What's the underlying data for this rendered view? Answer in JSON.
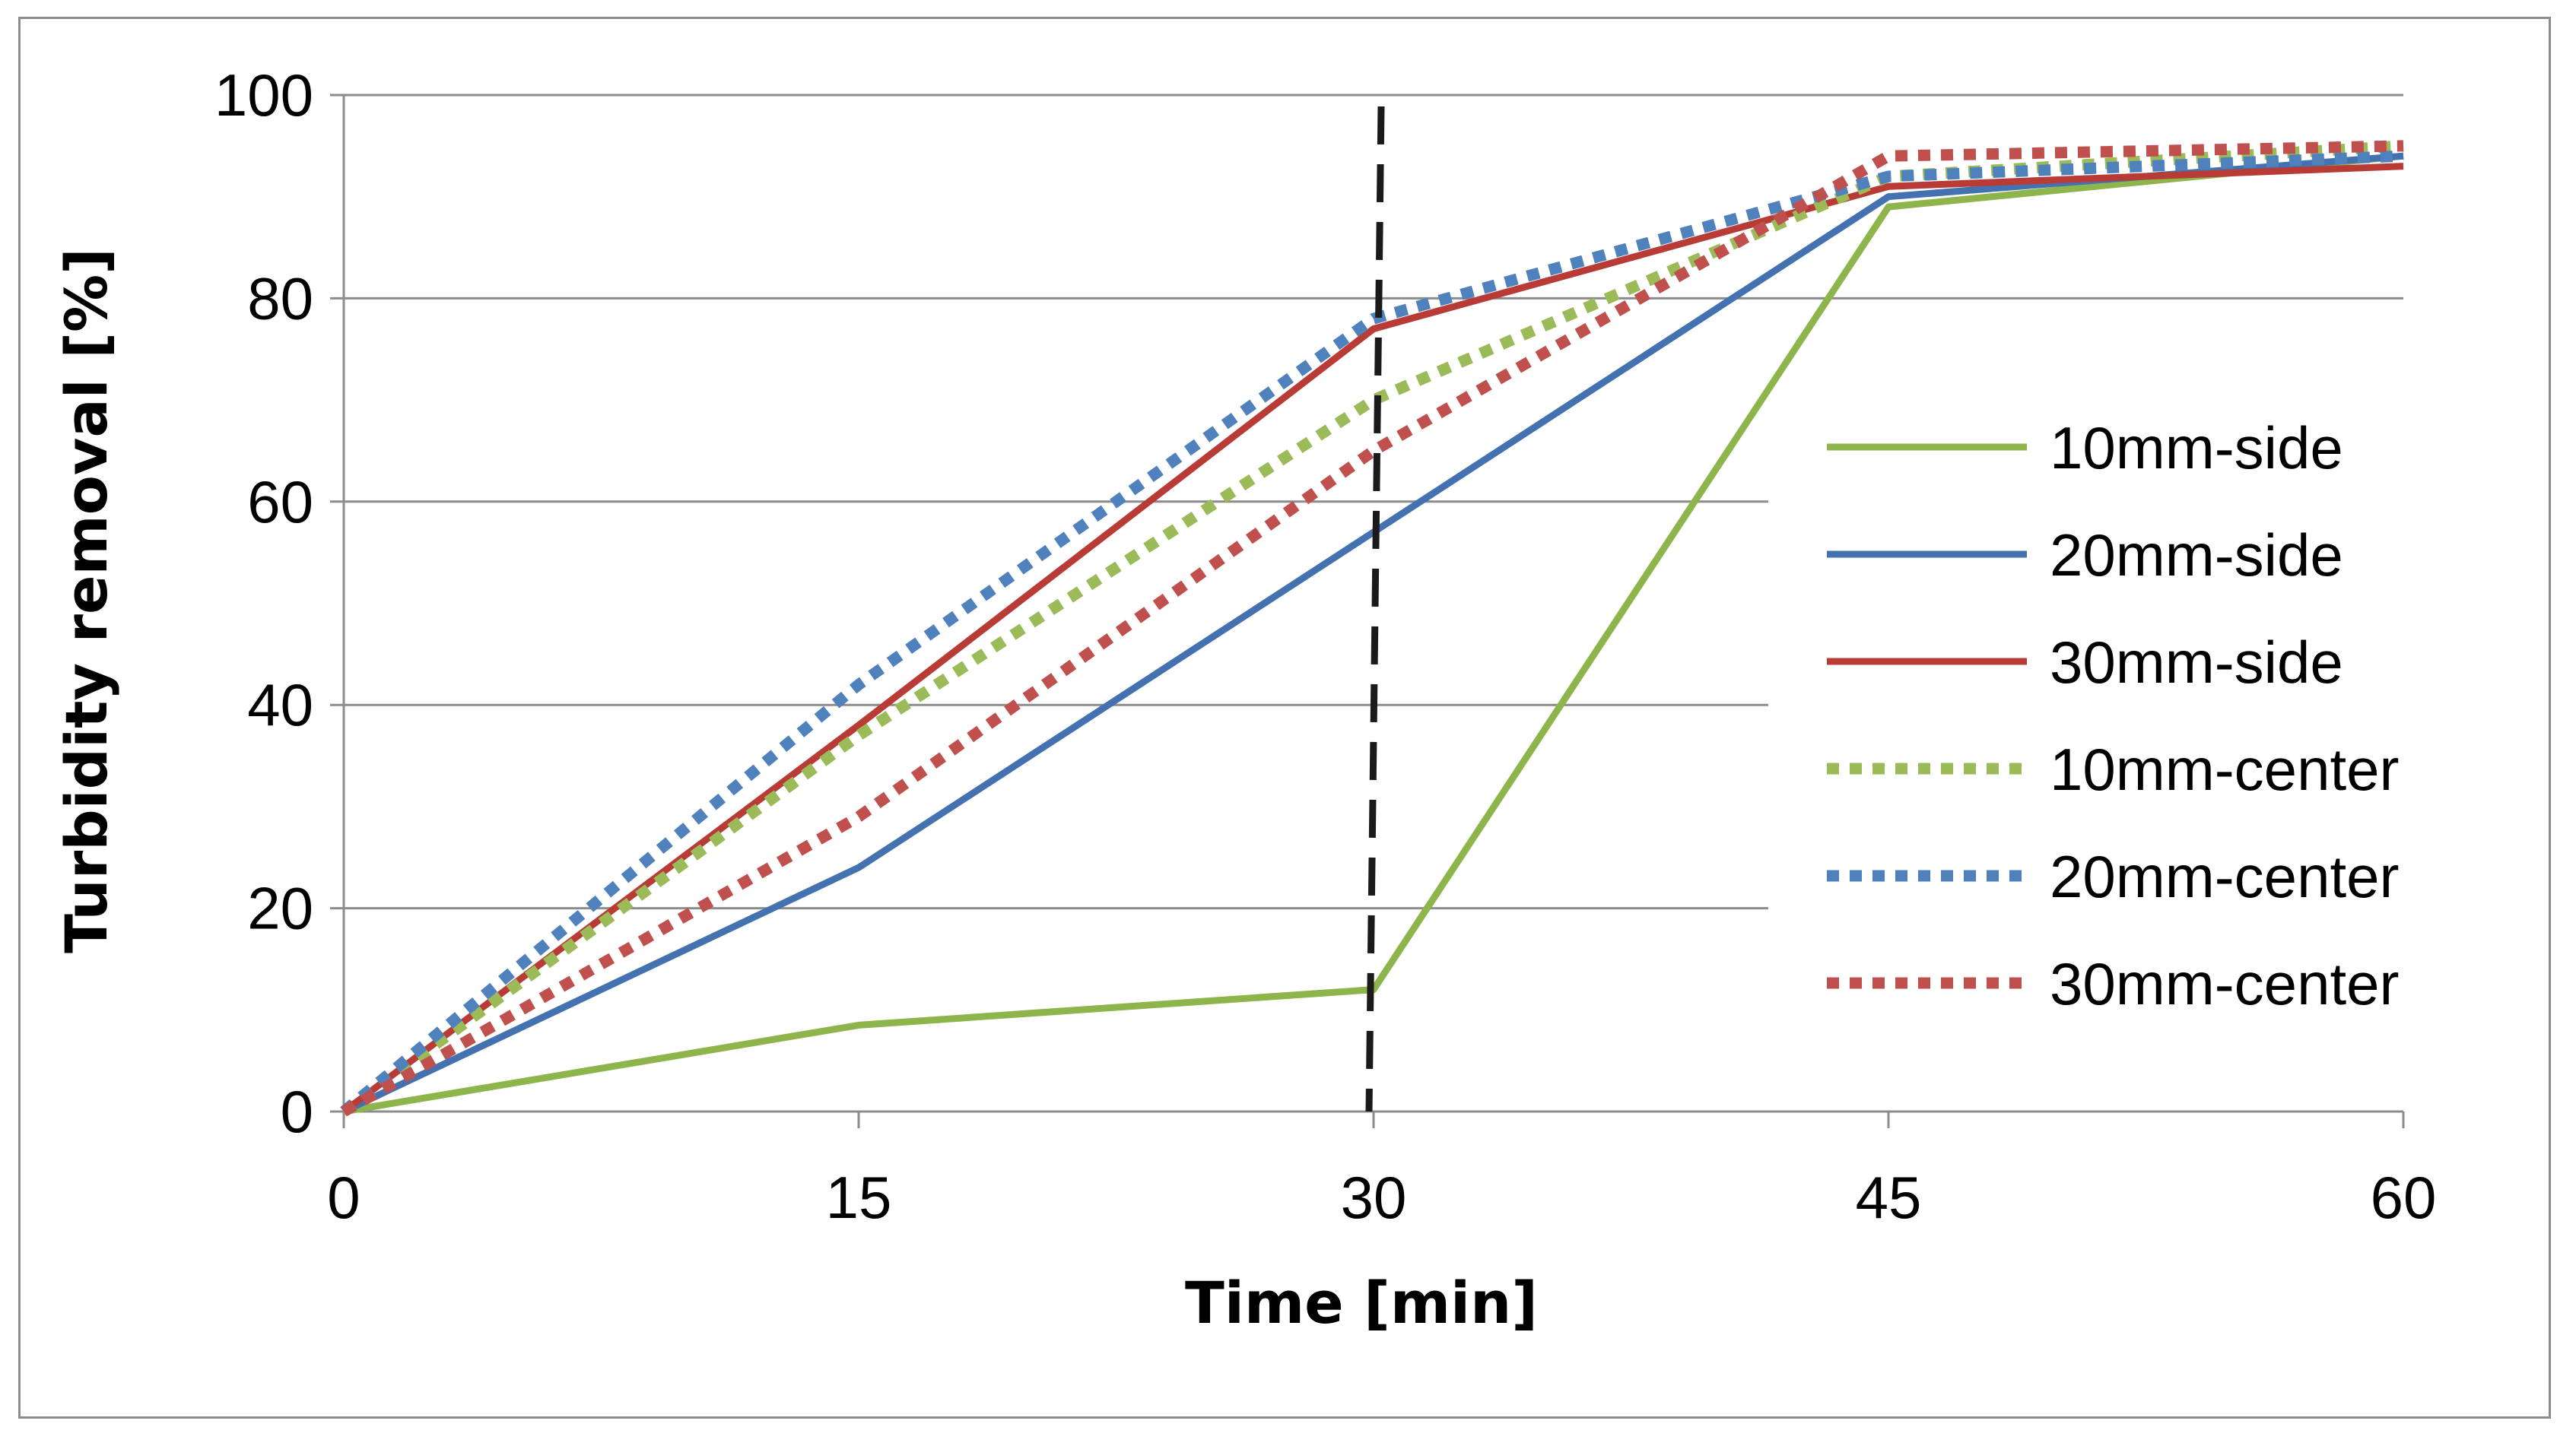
{
  "chart_data": {
    "type": "line",
    "title": "",
    "xlabel": "Time [min]",
    "ylabel": "Turbidity removal [%]",
    "x": [
      0,
      15,
      30,
      45,
      60
    ],
    "x_ticks": [
      "0",
      "15",
      "30",
      "45",
      "60"
    ],
    "y_ticks": [
      "0",
      "20",
      "40",
      "60",
      "80",
      "100"
    ],
    "xlim": [
      0,
      60
    ],
    "ylim": [
      0,
      100
    ],
    "grid": "horizontal",
    "legend_position": "right",
    "reference_line": {
      "x": 30,
      "style": "dashed",
      "color": "#1a1a1a"
    },
    "series": [
      {
        "name": "10mm-side",
        "values": [
          0,
          8.5,
          12,
          89,
          94
        ],
        "color": "#8DB54B",
        "style": "solid"
      },
      {
        "name": "20mm-side",
        "values": [
          0,
          24,
          57,
          90,
          94
        ],
        "color": "#4472B0",
        "style": "solid"
      },
      {
        "name": "30mm-side",
        "values": [
          0,
          38,
          77,
          91,
          93
        ],
        "color": "#B83B36",
        "style": "solid"
      },
      {
        "name": "10mm-center",
        "values": [
          0,
          37,
          70,
          92,
          95
        ],
        "color": "#9BBB59",
        "style": "dotted"
      },
      {
        "name": "20mm-center",
        "values": [
          0,
          42,
          78,
          92,
          94
        ],
        "color": "#4F81BD",
        "style": "dotted"
      },
      {
        "name": "30mm-center",
        "values": [
          0,
          29,
          65,
          94,
          95
        ],
        "color": "#C0504D",
        "style": "dotted"
      }
    ]
  }
}
